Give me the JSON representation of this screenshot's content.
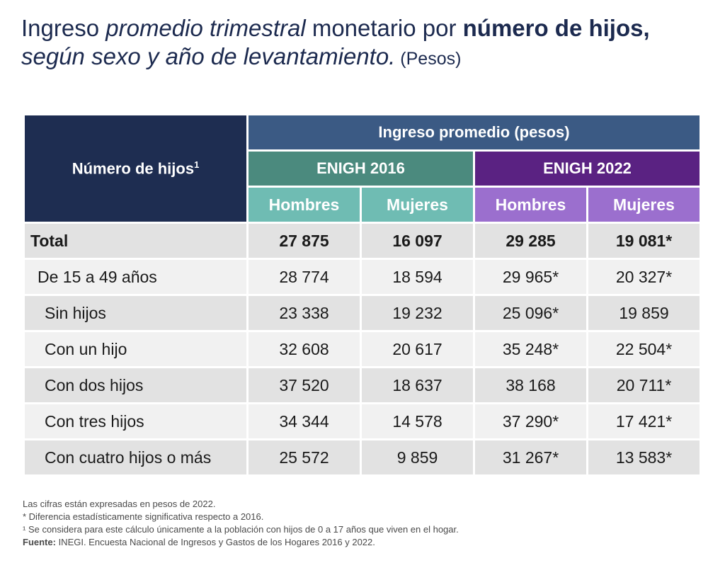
{
  "title": {
    "part1": "Ingreso ",
    "part2": "promedio trimestral",
    "part3": " monetario por ",
    "part4": "número de hijos,",
    "part5": "según sexo y año de levantamiento.",
    "part6": " (Pesos)"
  },
  "table": {
    "corner_label": "Número de hijos",
    "corner_sup": "1",
    "main_header": "Ingreso promedio (pesos)",
    "survey_2016": "ENIGH 2016",
    "survey_2022": "ENIGH 2022",
    "sub_headers": [
      "Hombres",
      "Mujeres",
      "Hombres",
      "Mujeres"
    ],
    "rows": [
      {
        "label": "Total",
        "values": [
          "27 875",
          "16 097",
          "29 285",
          "19 081*"
        ]
      },
      {
        "label": "De 15 a 49 años",
        "values": [
          "28 774",
          "18 594",
          "29 965*",
          "20 327*"
        ]
      },
      {
        "label": "Sin hijos",
        "values": [
          "23 338",
          "19 232",
          "25 096*",
          "19 859"
        ]
      },
      {
        "label": "Con un hijo",
        "values": [
          "32 608",
          "20 617",
          "35 248*",
          "22 504*"
        ]
      },
      {
        "label": "Con dos hijos",
        "values": [
          "37 520",
          "18 637",
          "38 168",
          "20 711*"
        ]
      },
      {
        "label": "Con tres hijos",
        "values": [
          "34 344",
          "14 578",
          "37 290*",
          "17 421*"
        ]
      },
      {
        "label": "Con cuatro hijos o más",
        "values": [
          "25 572",
          "9 859",
          "31 267*",
          "13 583*"
        ]
      }
    ]
  },
  "notes": {
    "line1": "Las cifras están expresadas en pesos de 2022.",
    "line2": "* Diferencia estadísticamente significativa respecto a 2016.",
    "line3": "¹ Se considera para este cálculo únicamente a la población con hijos de 0 a 17 años que viven en el hogar.",
    "source_label": "Fuente:",
    "source_text": " INEGI. Encuesta Nacional de Ingresos y Gastos de los Hogares 2016 y 2022."
  },
  "colors": {
    "title": "#1c2a4f",
    "corner": "#1e2d51",
    "main_header": "#3b5a84",
    "enigh_2016": "#4b8a7e",
    "enigh_2022": "#5a2282",
    "sub_2016": "#6fbcb3",
    "sub_2022": "#9b6fce"
  }
}
